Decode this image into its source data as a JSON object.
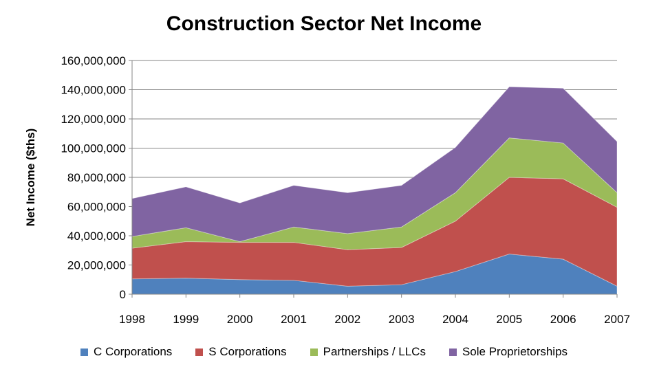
{
  "chart_data": {
    "type": "area",
    "stacked": true,
    "title": "Construction Sector Net Income",
    "xlabel": "",
    "ylabel": "Net Income ($ths)",
    "x": [
      "1998",
      "1999",
      "2000",
      "2001",
      "2002",
      "2003",
      "2004",
      "2005",
      "2006",
      "2007"
    ],
    "ylim": [
      0,
      160000000
    ],
    "yticks": [
      "0",
      "20,000,000",
      "40,000,000",
      "60,000,000",
      "80,000,000",
      "100,000,000",
      "120,000,000",
      "140,000,000",
      "160,000,000"
    ],
    "grid": true,
    "legend_position": "bottom",
    "series": [
      {
        "name": "C Corporations",
        "color": "#4F81BD",
        "values": [
          10500000,
          11000000,
          10000000,
          9500000,
          5500000,
          6500000,
          15500000,
          27500000,
          24000000,
          5500000
        ]
      },
      {
        "name": "S Corporations",
        "color": "#C0504D",
        "values": [
          21000000,
          25000000,
          25500000,
          26000000,
          25000000,
          25500000,
          34500000,
          52500000,
          55000000,
          54000000
        ]
      },
      {
        "name": "Partnerships / LLCs",
        "color": "#9BBB59",
        "values": [
          8000000,
          9500000,
          500000,
          10500000,
          11000000,
          14000000,
          19500000,
          27000000,
          24500000,
          10000000
        ]
      },
      {
        "name": "Sole Proprietorships",
        "color": "#8064A2",
        "values": [
          26000000,
          28000000,
          26500000,
          28500000,
          28000000,
          28500000,
          31000000,
          35000000,
          37500000,
          35000000
        ]
      }
    ]
  }
}
